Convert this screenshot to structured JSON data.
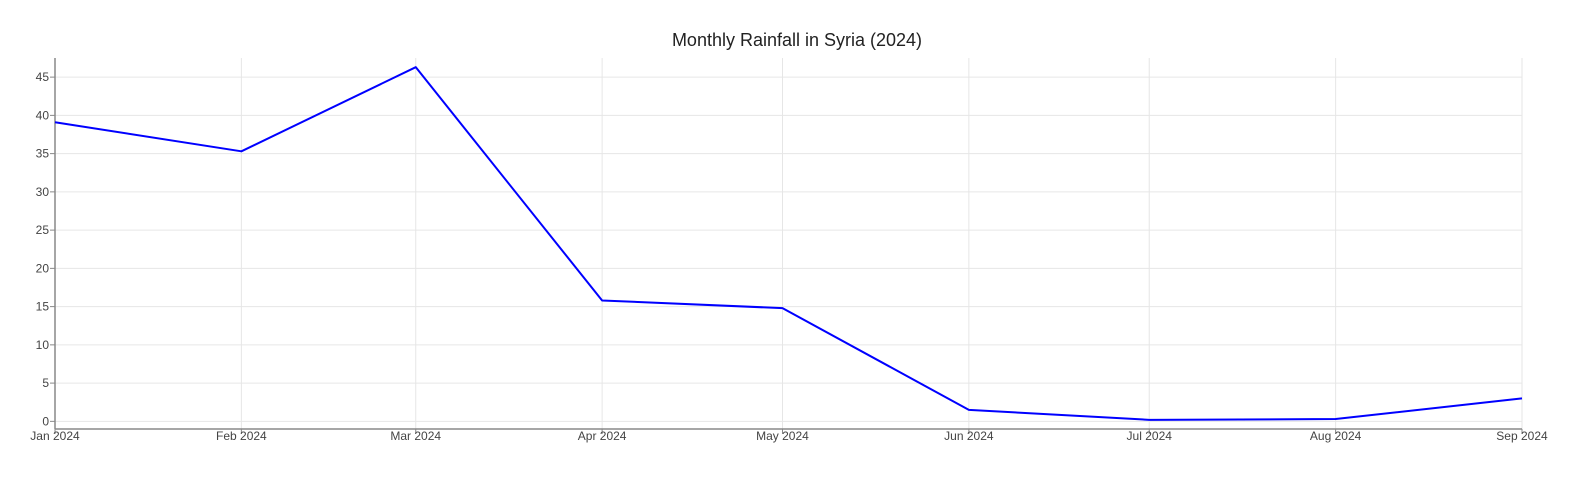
{
  "chart_data": {
    "type": "line",
    "title": "Monthly Rainfall in Syria (2024)",
    "xlabel": "",
    "ylabel": "",
    "categories": [
      "Jan 2024",
      "Feb 2024",
      "Mar 2024",
      "Apr 2024",
      "May 2024",
      "Jun 2024",
      "Jul 2024",
      "Aug 2024",
      "Sep 2024"
    ],
    "x_dates": [
      "2024-01-01",
      "2024-02-01",
      "2024-03-01",
      "2024-04-01",
      "2024-05-01",
      "2024-06-01",
      "2024-07-01",
      "2024-08-01",
      "2024-09-01"
    ],
    "series": [
      {
        "color": "#0000ff",
        "values": [
          39.1,
          35.3,
          46.3,
          15.8,
          14.8,
          1.5,
          0.2,
          0.3,
          3.0
        ]
      }
    ],
    "ylim": [
      -1,
      47.5
    ],
    "yticks": [
      0,
      5,
      10,
      15,
      20,
      25,
      30,
      35,
      40,
      45
    ],
    "grid": true,
    "legend": "none"
  }
}
